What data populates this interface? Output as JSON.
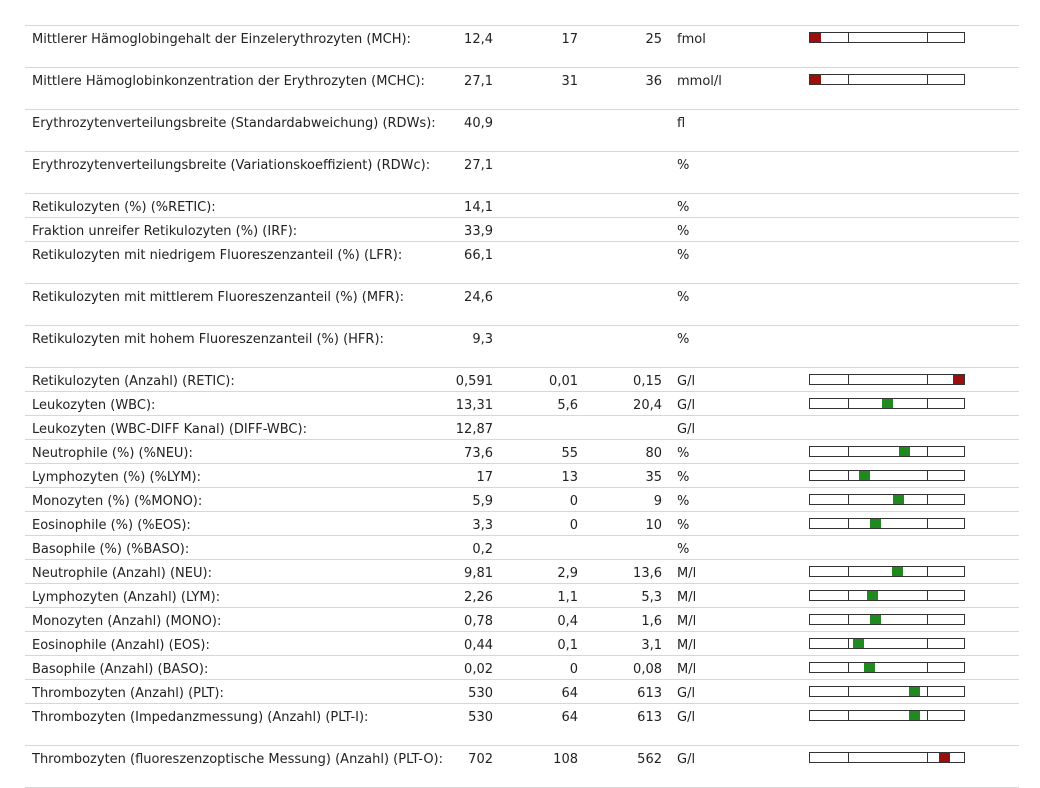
{
  "rows": [
    {
      "name": "Mittlerer Hämoglobingehalt der Einzelerythrozyten (MCH):",
      "value": "12,4",
      "low": "17",
      "high": "25",
      "unit": "fmol",
      "bar": {
        "pos": 0.0,
        "status": "red"
      }
    },
    {
      "name": "Mittlere Hämoglobinkonzentration der Erythrozyten (MCHC):",
      "value": "27,1",
      "low": "31",
      "high": "36",
      "unit": "mmol/l",
      "bar": {
        "pos": 0.0,
        "status": "red"
      }
    },
    {
      "name": "Erythrozytenverteilungsbreite (Standardabweichung) (RDWs):",
      "value": "40,9",
      "low": "",
      "high": "",
      "unit": "fl",
      "bar": null
    },
    {
      "name": "Erythrozytenverteilungsbreite (Variationskoeffizient) (RDWc):",
      "value": "27,1",
      "low": "",
      "high": "",
      "unit": "%",
      "bar": null
    },
    {
      "name": "Retikulozyten (%) (%RETIC):",
      "value": "14,1",
      "low": "",
      "high": "",
      "unit": "%",
      "bar": null
    },
    {
      "name": "Fraktion unreifer Retikulozyten (%) (IRF):",
      "value": "33,9",
      "low": "",
      "high": "",
      "unit": "%",
      "bar": null
    },
    {
      "name": "Retikulozyten mit niedrigem Fluoreszenzanteil (%) (LFR):",
      "value": "66,1",
      "low": "",
      "high": "",
      "unit": "%",
      "bar": null
    },
    {
      "name": "Retikulozyten mit mittlerem Fluoreszenzanteil (%) (MFR):",
      "value": "24,6",
      "low": "",
      "high": "",
      "unit": "%",
      "bar": null
    },
    {
      "name": "Retikulozyten mit hohem Fluoreszenzanteil (%) (HFR):",
      "value": "9,3",
      "low": "",
      "high": "",
      "unit": "%",
      "bar": null
    },
    {
      "name": "Retikulozyten (Anzahl) (RETIC):",
      "value": "0,591",
      "low": "0,01",
      "high": "0,15",
      "unit": "G/l",
      "bar": {
        "pos": 1.0,
        "status": "red"
      }
    },
    {
      "name": "Leukozyten (WBC):",
      "value": "13,31",
      "low": "5,6",
      "high": "20,4",
      "unit": "G/l",
      "bar": {
        "pos": 0.5,
        "status": "green"
      }
    },
    {
      "name": "Leukozyten (WBC-DIFF Kanal) (DIFF-WBC):",
      "value": "12,87",
      "low": "",
      "high": "",
      "unit": "G/l",
      "bar": null
    },
    {
      "name": "Neutrophile (%) (%NEU):",
      "value": "73,6",
      "low": "55",
      "high": "80",
      "unit": "%",
      "bar": {
        "pos": 0.62,
        "status": "green"
      }
    },
    {
      "name": "Lymphozyten (%) (%LYM):",
      "value": "17",
      "low": "13",
      "high": "35",
      "unit": "%",
      "bar": {
        "pos": 0.34,
        "status": "green"
      }
    },
    {
      "name": "Monozyten (%) (%MONO):",
      "value": "5,9",
      "low": "0",
      "high": "9",
      "unit": "%",
      "bar": {
        "pos": 0.58,
        "status": "green"
      }
    },
    {
      "name": "Eosinophile (%) (%EOS):",
      "value": "3,3",
      "low": "0",
      "high": "10",
      "unit": "%",
      "bar": {
        "pos": 0.42,
        "status": "green"
      }
    },
    {
      "name": "Basophile (%) (%BASO):",
      "value": "0,2",
      "low": "",
      "high": "",
      "unit": "%",
      "bar": null
    },
    {
      "name": "Neutrophile (Anzahl) (NEU):",
      "value": "9,81",
      "low": "2,9",
      "high": "13,6",
      "unit": "M/l",
      "bar": {
        "pos": 0.57,
        "status": "green"
      }
    },
    {
      "name": "Lymphozyten (Anzahl) (LYM):",
      "value": "2,26",
      "low": "1,1",
      "high": "5,3",
      "unit": "M/l",
      "bar": {
        "pos": 0.4,
        "status": "green"
      }
    },
    {
      "name": "Monozyten (Anzahl) (MONO):",
      "value": "0,78",
      "low": "0,4",
      "high": "1,6",
      "unit": "M/l",
      "bar": {
        "pos": 0.42,
        "status": "green"
      }
    },
    {
      "name": "Eosinophile (Anzahl) (EOS):",
      "value": "0,44",
      "low": "0,1",
      "high": "3,1",
      "unit": "M/l",
      "bar": {
        "pos": 0.3,
        "status": "green"
      }
    },
    {
      "name": "Basophile (Anzahl) (BASO):",
      "value": "0,02",
      "low": "0",
      "high": "0,08",
      "unit": "M/l",
      "bar": {
        "pos": 0.38,
        "status": "green"
      }
    },
    {
      "name": "Thrombozyten (Anzahl) (PLT):",
      "value": "530",
      "low": "64",
      "high": "613",
      "unit": "G/l",
      "bar": {
        "pos": 0.69,
        "status": "green"
      }
    },
    {
      "name": "Thrombozyten (Impedanzmessung) (Anzahl) (PLT-I):",
      "value": "530",
      "low": "64",
      "high": "613",
      "unit": "G/l",
      "bar": {
        "pos": 0.69,
        "status": "green"
      }
    },
    {
      "name": "Thrombozyten (fluoreszenzoptische Messung) (Anzahl) (PLT-O):",
      "value": "702",
      "low": "108",
      "high": "562",
      "unit": "G/l",
      "bar": {
        "pos": 0.9,
        "status": "red"
      }
    }
  ]
}
